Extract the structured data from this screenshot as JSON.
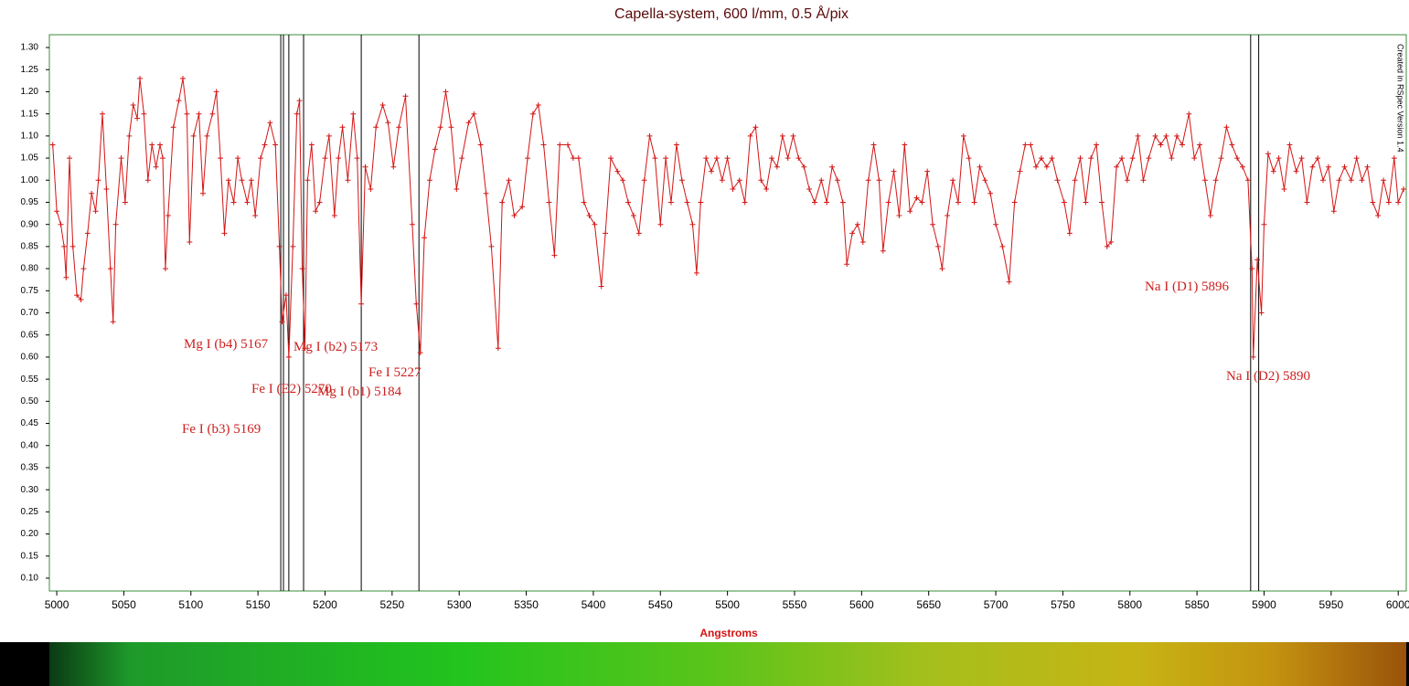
{
  "chart_data": {
    "type": "line",
    "title": "Capella-system,  600 l/mm,  0.5 Å/pix",
    "xlabel": "Angstroms",
    "note": "Created in RSpec Version 1.4",
    "color": "#d41414",
    "xlim": [
      4994.5,
      6006
    ],
    "ylim": [
      0.071,
      1.329
    ],
    "xticks": [
      5000,
      5050,
      5100,
      5150,
      5200,
      5250,
      5300,
      5350,
      5400,
      5450,
      5500,
      5550,
      5600,
      5650,
      5700,
      5750,
      5800,
      5850,
      5900,
      5950,
      6000
    ],
    "yticks": [
      {
        "value": 0.1,
        "label": "0.10"
      },
      0.15,
      {
        "value": 0.2,
        "label": "0.20"
      },
      0.25,
      {
        "value": 0.3,
        "label": "0.30"
      },
      0.35,
      {
        "value": 0.4,
        "label": "0.40"
      },
      0.45,
      {
        "value": 0.5,
        "label": "0.50"
      },
      0.55,
      {
        "value": 0.6,
        "label": "0.60"
      },
      0.65,
      {
        "value": 0.7,
        "label": "0.70"
      },
      0.75,
      {
        "value": 0.8,
        "label": "0.80"
      },
      0.85,
      {
        "value": 0.9,
        "label": "0.90"
      },
      0.95,
      {
        "value": 1.0,
        "label": "1.00"
      },
      1.05,
      {
        "value": 1.1,
        "label": "1.10"
      },
      1.15,
      {
        "value": 1.2,
        "label": "1.20"
      },
      1.25,
      {
        "value": 1.3,
        "label": "1.30"
      }
    ],
    "x": [
      4997,
      5000,
      5003,
      5005.5,
      5007,
      5009.5,
      5012,
      5015,
      5018,
      5020,
      5023,
      5026,
      5029,
      5031,
      5034,
      5037,
      5040,
      5042,
      5044,
      5048,
      5051,
      5054,
      5057,
      5060,
      5062,
      5065,
      5068,
      5071,
      5074,
      5077,
      5079,
      5081,
      5083,
      5087,
      5091,
      5094,
      5097,
      5099,
      5102,
      5106,
      5109,
      5112,
      5116,
      5119,
      5122,
      5125,
      5128,
      5132,
      5135,
      5138,
      5142,
      5145,
      5148,
      5152,
      5155,
      5159,
      5163,
      5166,
      5168,
      5171,
      5173,
      5176,
      5179,
      5181,
      5183,
      5185,
      5187,
      5190,
      5193,
      5196,
      5200,
      5203,
      5207,
      5210,
      5213,
      5217,
      5221,
      5224,
      5227,
      5230,
      5234,
      5238,
      5243,
      5247,
      5251,
      5255,
      5260,
      5265,
      5268,
      5271,
      5274,
      5278,
      5282,
      5286,
      5290,
      5294,
      5298,
      5302,
      5307,
      5311,
      5316,
      5320,
      5324,
      5329,
      5332,
      5337,
      5341,
      5347,
      5351,
      5355,
      5359,
      5363,
      5367,
      5371,
      5375,
      5381,
      5385,
      5389,
      5393,
      5397,
      5401,
      5406,
      5409,
      5413,
      5418,
      5422,
      5426,
      5430,
      5434,
      5438,
      5442,
      5446,
      5450,
      5454,
      5458,
      5462,
      5466,
      5470,
      5474,
      5477,
      5480,
      5484,
      5488,
      5492,
      5496,
      5500,
      5504,
      5509,
      5513,
      5517,
      5521,
      5525,
      5529,
      5533,
      5537,
      5541,
      5545,
      5549,
      5553,
      5557,
      5561,
      5565,
      5570,
      5574,
      5578,
      5582,
      5586,
      5589,
      5593,
      5597,
      5601,
      5605,
      5609,
      5613,
      5616,
      5620,
      5624,
      5628,
      5632,
      5636,
      5641,
      5645,
      5649,
      5653,
      5657,
      5660,
      5664,
      5668,
      5672,
      5676,
      5680,
      5684,
      5688,
      5692,
      5696,
      5700,
      5705,
      5710,
      5714,
      5718,
      5722,
      5726,
      5730,
      5734,
      5738,
      5742,
      5746,
      5751,
      5755,
      5759,
      5763,
      5767,
      5771,
      5775,
      5779,
      5783,
      5786,
      5790,
      5794,
      5798,
      5802,
      5806,
      5810,
      5814,
      5819,
      5823,
      5827,
      5831,
      5835,
      5839,
      5844,
      5848,
      5852,
      5856,
      5860,
      5864,
      5868,
      5872,
      5876,
      5880,
      5884,
      5888,
      5891,
      5892,
      5895,
      5898,
      5900,
      5903,
      5907,
      5911,
      5915,
      5919,
      5924,
      5928,
      5932,
      5936,
      5940,
      5944,
      5948,
      5952,
      5956,
      5960,
      5965,
      5969,
      5973,
      5977,
      5981,
      5985,
      5989,
      5993,
      5997,
      6000,
      6004
    ],
    "values": [
      1.08,
      0.93,
      0.9,
      0.85,
      0.78,
      1.05,
      0.85,
      0.74,
      0.73,
      0.8,
      0.88,
      0.97,
      0.93,
      1.0,
      1.15,
      0.98,
      0.8,
      0.68,
      0.9,
      1.05,
      0.95,
      1.1,
      1.17,
      1.14,
      1.23,
      1.15,
      1.0,
      1.08,
      1.03,
      1.08,
      1.05,
      0.8,
      0.92,
      1.12,
      1.18,
      1.23,
      1.15,
      0.86,
      1.1,
      1.15,
      0.97,
      1.1,
      1.15,
      1.2,
      1.05,
      0.88,
      1.0,
      0.95,
      1.05,
      1.0,
      0.95,
      1.0,
      0.92,
      1.05,
      1.08,
      1.13,
      1.08,
      0.85,
      0.68,
      0.74,
      0.6,
      0.85,
      1.15,
      1.18,
      0.8,
      0.62,
      1.0,
      1.08,
      0.93,
      0.95,
      1.05,
      1.1,
      0.92,
      1.05,
      1.12,
      1.0,
      1.15,
      1.05,
      0.72,
      1.03,
      0.98,
      1.12,
      1.17,
      1.13,
      1.03,
      1.12,
      1.19,
      0.9,
      0.72,
      0.61,
      0.87,
      1.0,
      1.07,
      1.12,
      1.2,
      1.12,
      0.98,
      1.05,
      1.13,
      1.15,
      1.08,
      0.97,
      0.85,
      0.62,
      0.95,
      1.0,
      0.92,
      0.94,
      1.05,
      1.15,
      1.17,
      1.08,
      0.95,
      0.83,
      1.08,
      1.08,
      1.05,
      1.05,
      0.95,
      0.92,
      0.9,
      0.76,
      0.88,
      1.05,
      1.02,
      1.0,
      0.95,
      0.92,
      0.88,
      1.0,
      1.1,
      1.05,
      0.9,
      1.05,
      0.95,
      1.08,
      1.0,
      0.95,
      0.9,
      0.79,
      0.95,
      1.05,
      1.02,
      1.05,
      1.0,
      1.05,
      0.98,
      1.0,
      0.95,
      1.1,
      1.12,
      1.0,
      0.98,
      1.05,
      1.03,
      1.1,
      1.05,
      1.1,
      1.05,
      1.03,
      0.98,
      0.95,
      1.0,
      0.95,
      1.03,
      1.0,
      0.95,
      0.81,
      0.88,
      0.9,
      0.86,
      1.0,
      1.08,
      1.0,
      0.84,
      0.95,
      1.02,
      0.92,
      1.08,
      0.93,
      0.96,
      0.95,
      1.02,
      0.9,
      0.85,
      0.8,
      0.92,
      1.0,
      0.95,
      1.1,
      1.05,
      0.95,
      1.03,
      1.0,
      0.97,
      0.9,
      0.85,
      0.77,
      0.95,
      1.02,
      1.08,
      1.08,
      1.03,
      1.05,
      1.03,
      1.05,
      1.0,
      0.95,
      0.88,
      1.0,
      1.05,
      0.95,
      1.05,
      1.08,
      0.95,
      0.85,
      0.86,
      1.03,
      1.05,
      1.0,
      1.05,
      1.1,
      1.0,
      1.05,
      1.1,
      1.08,
      1.1,
      1.05,
      1.1,
      1.08,
      1.15,
      1.05,
      1.08,
      1.0,
      0.92,
      1.0,
      1.05,
      1.12,
      1.08,
      1.05,
      1.03,
      1.0,
      0.8,
      0.6,
      0.82,
      0.7,
      0.9,
      1.06,
      1.02,
      1.05,
      0.98,
      1.08,
      1.02,
      1.05,
      0.95,
      1.03,
      1.05,
      1.0,
      1.03,
      0.93,
      1.0,
      1.03,
      1.0,
      1.05,
      1.0,
      1.03,
      0.95,
      0.92,
      1.0,
      0.95,
      1.05,
      0.95,
      0.98
    ],
    "annotations": [
      {
        "label": "Mg I (b4) 5167",
        "x": 5167
      },
      {
        "label": "Fe I (b3) 5169",
        "x": 5169
      },
      {
        "label": "Mg I (b2) 5173",
        "x": 5173
      },
      {
        "label": "Mg I (b1) 5184",
        "x": 5184
      },
      {
        "label": "Fe I 5227",
        "x": 5227
      },
      {
        "label": "Fe I (E2) 5270",
        "x": 5270
      },
      {
        "label": "Na I (D2) 5890",
        "x": 5890
      },
      {
        "label": "Na I (D1) 5896",
        "x": 5896
      }
    ]
  }
}
